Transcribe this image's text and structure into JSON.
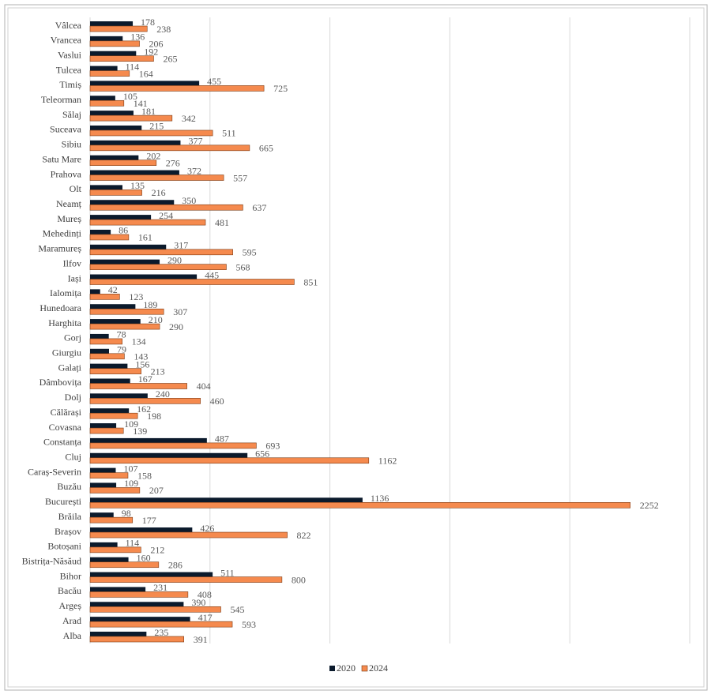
{
  "chart_data": {
    "type": "bar",
    "orientation": "horizontal",
    "categories": [
      "Vâlcea",
      "Vrancea",
      "Vaslui",
      "Tulcea",
      "Timiș",
      "Teleorman",
      "Sălaj",
      "Suceava",
      "Sibiu",
      "Satu Mare",
      "Prahova",
      "Olt",
      "Neamț",
      "Mureș",
      "Mehedinți",
      "Maramureș",
      "Ilfov",
      "Iași",
      "Ialomița",
      "Hunedoara",
      "Harghita",
      "Gorj",
      "Giurgiu",
      "Galați",
      "Dâmbovița",
      "Dolj",
      "Călărași",
      "Covasna",
      "Constanța",
      "Cluj",
      "Caraș-Severin",
      "Buzău",
      "București",
      "Brăila",
      "Brașov",
      "Botoșani",
      "Bistrița-Năsăud",
      "Bihor",
      "Bacău",
      "Argeș",
      "Arad",
      "Alba"
    ],
    "series": [
      {
        "name": "2020",
        "color": "#0b1a2c",
        "values": [
          178,
          136,
          192,
          114,
          455,
          105,
          181,
          215,
          377,
          202,
          372,
          135,
          350,
          254,
          86,
          317,
          290,
          445,
          42,
          189,
          210,
          78,
          79,
          156,
          167,
          240,
          162,
          109,
          487,
          656,
          107,
          109,
          1136,
          98,
          426,
          114,
          160,
          511,
          231,
          390,
          417,
          235
        ]
      },
      {
        "name": "2024",
        "color": "#f58a4e",
        "values": [
          238,
          206,
          265,
          164,
          725,
          141,
          342,
          511,
          665,
          276,
          557,
          216,
          637,
          481,
          161,
          595,
          568,
          851,
          123,
          307,
          290,
          134,
          143,
          213,
          404,
          460,
          198,
          139,
          693,
          1162,
          158,
          207,
          2252,
          177,
          822,
          212,
          286,
          800,
          408,
          545,
          593,
          391
        ]
      }
    ],
    "xlim": [
      0,
      2500
    ],
    "xticks": [
      0,
      500,
      1000,
      1500,
      2000,
      2500
    ],
    "grid": true,
    "legend": "bottom"
  }
}
